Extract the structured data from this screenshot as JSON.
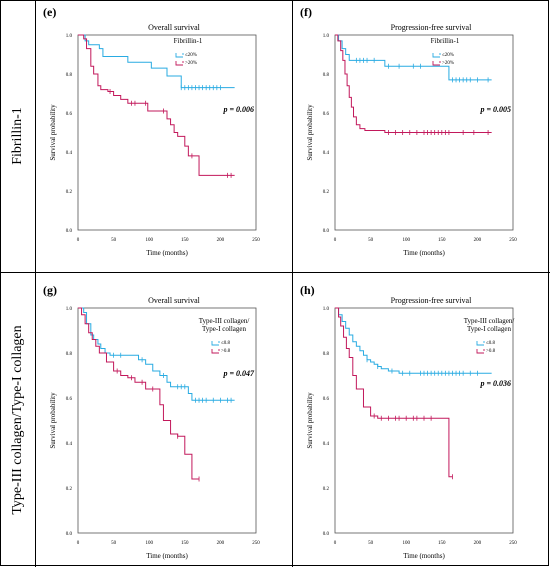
{
  "row_labels": [
    "Fibrillin-1",
    "Type-III collagen/Type-I collagen"
  ],
  "chart_data": [
    {
      "panel_label": "(e)",
      "type": "line",
      "title": "Overall survival",
      "xlabel": "Time (months)",
      "ylabel": "Survival probability",
      "xlim": [
        0,
        250
      ],
      "ylim": [
        0,
        1.0
      ],
      "x_ticks": [
        0,
        50,
        100,
        150,
        200,
        250
      ],
      "y_ticks": [
        0.0,
        0.2,
        0.4,
        0.6,
        0.8,
        1.0
      ],
      "legend_title": [
        "Fibrillin-1"
      ],
      "p_value": "p = 0.006",
      "series": [
        {
          "name": "≤20%",
          "color": "#29abe2",
          "x": [
            0,
            10,
            15,
            30,
            35,
            65,
            70,
            100,
            103,
            120,
            125,
            140,
            145,
            220
          ],
          "y": [
            1.0,
            0.97,
            0.95,
            0.93,
            0.89,
            0.89,
            0.86,
            0.86,
            0.83,
            0.83,
            0.79,
            0.79,
            0.73,
            0.73
          ],
          "censored_x": [
            145,
            150,
            155,
            160,
            165,
            170,
            175,
            180,
            185,
            190,
            195,
            200
          ]
        },
        {
          "name": ">20%",
          "color": "#c2185b",
          "x": [
            0,
            8,
            12,
            18,
            22,
            28,
            32,
            42,
            50,
            60,
            70,
            85,
            98,
            108,
            118,
            125,
            130,
            135,
            140,
            150,
            155,
            160,
            170,
            220
          ],
          "y": [
            1.0,
            0.98,
            0.93,
            0.84,
            0.8,
            0.74,
            0.72,
            0.71,
            0.69,
            0.67,
            0.65,
            0.65,
            0.61,
            0.61,
            0.61,
            0.57,
            0.54,
            0.5,
            0.48,
            0.43,
            0.38,
            0.38,
            0.28,
            0.28
          ],
          "censored_x": [
            45,
            75,
            80,
            95,
            120,
            160,
            210,
            215
          ]
        }
      ]
    },
    {
      "panel_label": "(f)",
      "type": "line",
      "title": "Progression-free survival",
      "xlabel": "Time (months)",
      "ylabel": "Survival probability",
      "xlim": [
        0,
        250
      ],
      "ylim": [
        0,
        1.0
      ],
      "x_ticks": [
        0,
        50,
        100,
        150,
        200,
        250
      ],
      "y_ticks": [
        0.0,
        0.2,
        0.4,
        0.6,
        0.8,
        1.0
      ],
      "legend_title": [
        "Fibrillin-1"
      ],
      "p_value": "p = 0.005",
      "series": [
        {
          "name": "≤20%",
          "color": "#29abe2",
          "x": [
            0,
            5,
            10,
            15,
            20,
            65,
            70,
            155,
            160,
            220
          ],
          "y": [
            1.0,
            0.97,
            0.93,
            0.9,
            0.87,
            0.87,
            0.84,
            0.84,
            0.77,
            0.77
          ],
          "censored_x": [
            30,
            35,
            40,
            45,
            55,
            75,
            90,
            110,
            120,
            165,
            170,
            175,
            180,
            185,
            190,
            200,
            215
          ]
        },
        {
          "name": ">20%",
          "color": "#c2185b",
          "x": [
            0,
            4,
            8,
            11,
            14,
            17,
            20,
            23,
            26,
            30,
            35,
            42,
            50,
            60,
            70,
            80,
            220
          ],
          "y": [
            1.0,
            0.97,
            0.92,
            0.87,
            0.8,
            0.74,
            0.68,
            0.63,
            0.58,
            0.54,
            0.52,
            0.51,
            0.51,
            0.51,
            0.5,
            0.5,
            0.5
          ],
          "censored_x": [
            75,
            85,
            95,
            105,
            115,
            125,
            130,
            135,
            140,
            145,
            150,
            155,
            160,
            180,
            195,
            215
          ]
        }
      ]
    },
    {
      "panel_label": "(g)",
      "type": "line",
      "title": "Overall survival",
      "xlabel": "Time (months)",
      "ylabel": "Survival probability",
      "xlim": [
        0,
        250
      ],
      "ylim": [
        0,
        1.0
      ],
      "x_ticks": [
        0,
        50,
        100,
        150,
        200,
        250
      ],
      "y_ticks": [
        0.0,
        0.2,
        0.4,
        0.6,
        0.8,
        1.0
      ],
      "legend_title": [
        "Type-III collagen/",
        "Type-I collagen"
      ],
      "p_value": "p = 0.047",
      "series": [
        {
          "name": "≤0.8",
          "color": "#29abe2",
          "x": [
            0,
            8,
            12,
            18,
            22,
            28,
            32,
            38,
            45,
            55,
            85,
            95,
            105,
            115,
            125,
            130,
            135,
            155,
            160,
            220
          ],
          "y": [
            1.0,
            0.98,
            0.93,
            0.88,
            0.86,
            0.84,
            0.82,
            0.8,
            0.79,
            0.79,
            0.77,
            0.75,
            0.72,
            0.7,
            0.67,
            0.65,
            0.65,
            0.62,
            0.59,
            0.59
          ],
          "censored_x": [
            50,
            60,
            90,
            120,
            140,
            145,
            150,
            165,
            170,
            175,
            180,
            190,
            200,
            210,
            215
          ]
        },
        {
          "name": ">0.8",
          "color": "#c2185b",
          "x": [
            0,
            5,
            10,
            15,
            20,
            25,
            30,
            40,
            50,
            60,
            70,
            80,
            95,
            100,
            115,
            120,
            130,
            140,
            150,
            160,
            170
          ],
          "y": [
            1.0,
            0.97,
            0.93,
            0.89,
            0.86,
            0.83,
            0.8,
            0.76,
            0.72,
            0.7,
            0.69,
            0.67,
            0.64,
            0.64,
            0.57,
            0.5,
            0.44,
            0.43,
            0.35,
            0.24,
            0.24
          ],
          "censored_x": [
            55,
            75,
            90,
            105,
            140,
            170
          ]
        }
      ]
    },
    {
      "panel_label": "(h)",
      "type": "line",
      "title": "Progression-free survival",
      "xlabel": "Time (months)",
      "ylabel": "Survival probability",
      "xlim": [
        0,
        250
      ],
      "ylim": [
        0,
        1.0
      ],
      "x_ticks": [
        0,
        50,
        100,
        150,
        200,
        250
      ],
      "y_ticks": [
        0.0,
        0.2,
        0.4,
        0.6,
        0.8,
        1.0
      ],
      "legend_title": [
        "Type-III collagen/",
        "Type-I collagen"
      ],
      "p_value": "p = 0.036",
      "series": [
        {
          "name": "≤0.8",
          "color": "#29abe2",
          "x": [
            0,
            5,
            10,
            15,
            20,
            25,
            30,
            35,
            40,
            45,
            50,
            55,
            60,
            65,
            70,
            75,
            80,
            90,
            100,
            120,
            220
          ],
          "y": [
            1.0,
            0.97,
            0.94,
            0.91,
            0.88,
            0.85,
            0.83,
            0.81,
            0.79,
            0.77,
            0.76,
            0.75,
            0.74,
            0.73,
            0.73,
            0.72,
            0.72,
            0.71,
            0.71,
            0.71,
            0.71
          ],
          "censored_x": [
            45,
            60,
            80,
            95,
            105,
            120,
            125,
            130,
            135,
            140,
            145,
            150,
            155,
            160,
            165,
            170,
            175,
            180,
            190,
            200
          ]
        },
        {
          "name": ">0.8",
          "color": "#c2185b",
          "x": [
            0,
            5,
            8,
            12,
            16,
            20,
            25,
            30,
            40,
            50,
            60,
            70,
            80,
            90,
            100,
            110,
            120,
            140,
            150,
            160,
            165
          ],
          "y": [
            1.0,
            0.96,
            0.92,
            0.87,
            0.82,
            0.78,
            0.7,
            0.64,
            0.56,
            0.52,
            0.51,
            0.51,
            0.51,
            0.51,
            0.51,
            0.51,
            0.51,
            0.51,
            0.51,
            0.25,
            0.25
          ],
          "censored_x": [
            55,
            65,
            75,
            85,
            90,
            100,
            110,
            115,
            125,
            135,
            165
          ]
        }
      ]
    }
  ]
}
